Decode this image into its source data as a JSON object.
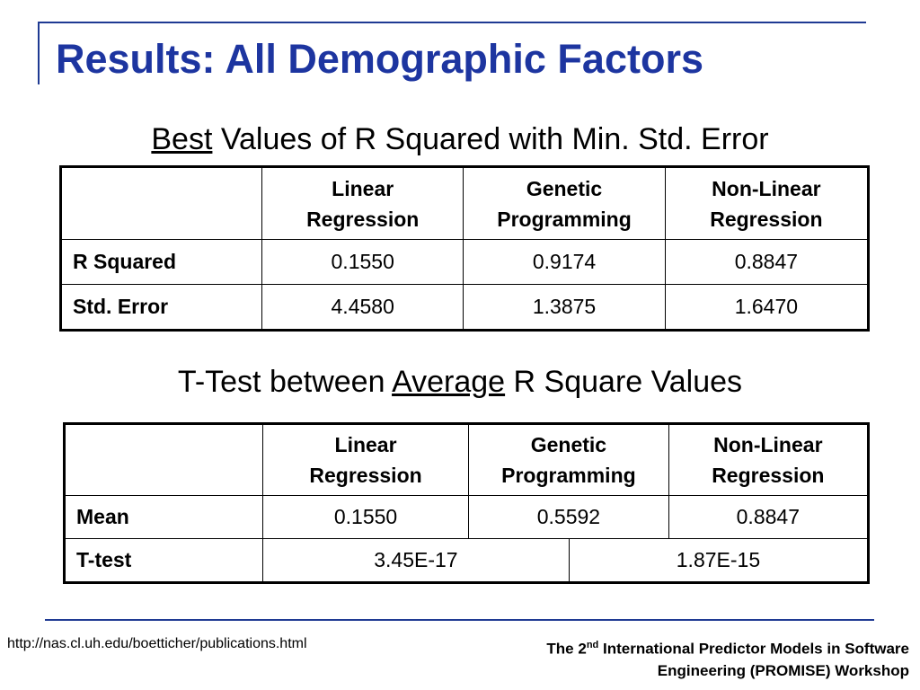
{
  "slide": {
    "title": "Results: All Demographic Factors"
  },
  "table1": {
    "caption_underlined": "Best",
    "caption_rest": " Values of R Squared with Min. Std. Error",
    "headers": [
      {
        "line1": "Linear",
        "line2": "Regression"
      },
      {
        "line1": "Genetic",
        "line2": "Programming"
      },
      {
        "line1": "Non-Linear",
        "line2": "Regression"
      }
    ],
    "rows": [
      {
        "label": "R Squared",
        "values": [
          "0.1550",
          "0.9174",
          "0.8847"
        ]
      },
      {
        "label": "Std. Error",
        "values": [
          "4.4580",
          "1.3875",
          "1.6470"
        ]
      }
    ]
  },
  "table2": {
    "caption_before": "T-Test between ",
    "caption_underlined": "Average",
    "caption_after": " R Square Values",
    "headers": [
      {
        "line1": "Linear",
        "line2": "Regression"
      },
      {
        "line1": "Genetic",
        "line2": "Programming"
      },
      {
        "line1": "Non-Linear",
        "line2": "Regression"
      }
    ],
    "mean_row": {
      "label": "Mean",
      "values": [
        "0.1550",
        "0.5592",
        "0.8847"
      ]
    },
    "ttest_row": {
      "label": "T-test",
      "values": [
        "3.45E-17",
        "1.87E-15"
      ]
    }
  },
  "footer": {
    "url": "http://nas.cl.uh.edu/boetticher/publications.html",
    "right_prefix": "The 2",
    "right_sup": "nd",
    "right_line1_rest": " International Predictor Models in Software",
    "right_line2": "Engineering (PROMISE) Workshop"
  },
  "colors": {
    "title": "#1d35a0",
    "rules": "#1f3a93"
  }
}
